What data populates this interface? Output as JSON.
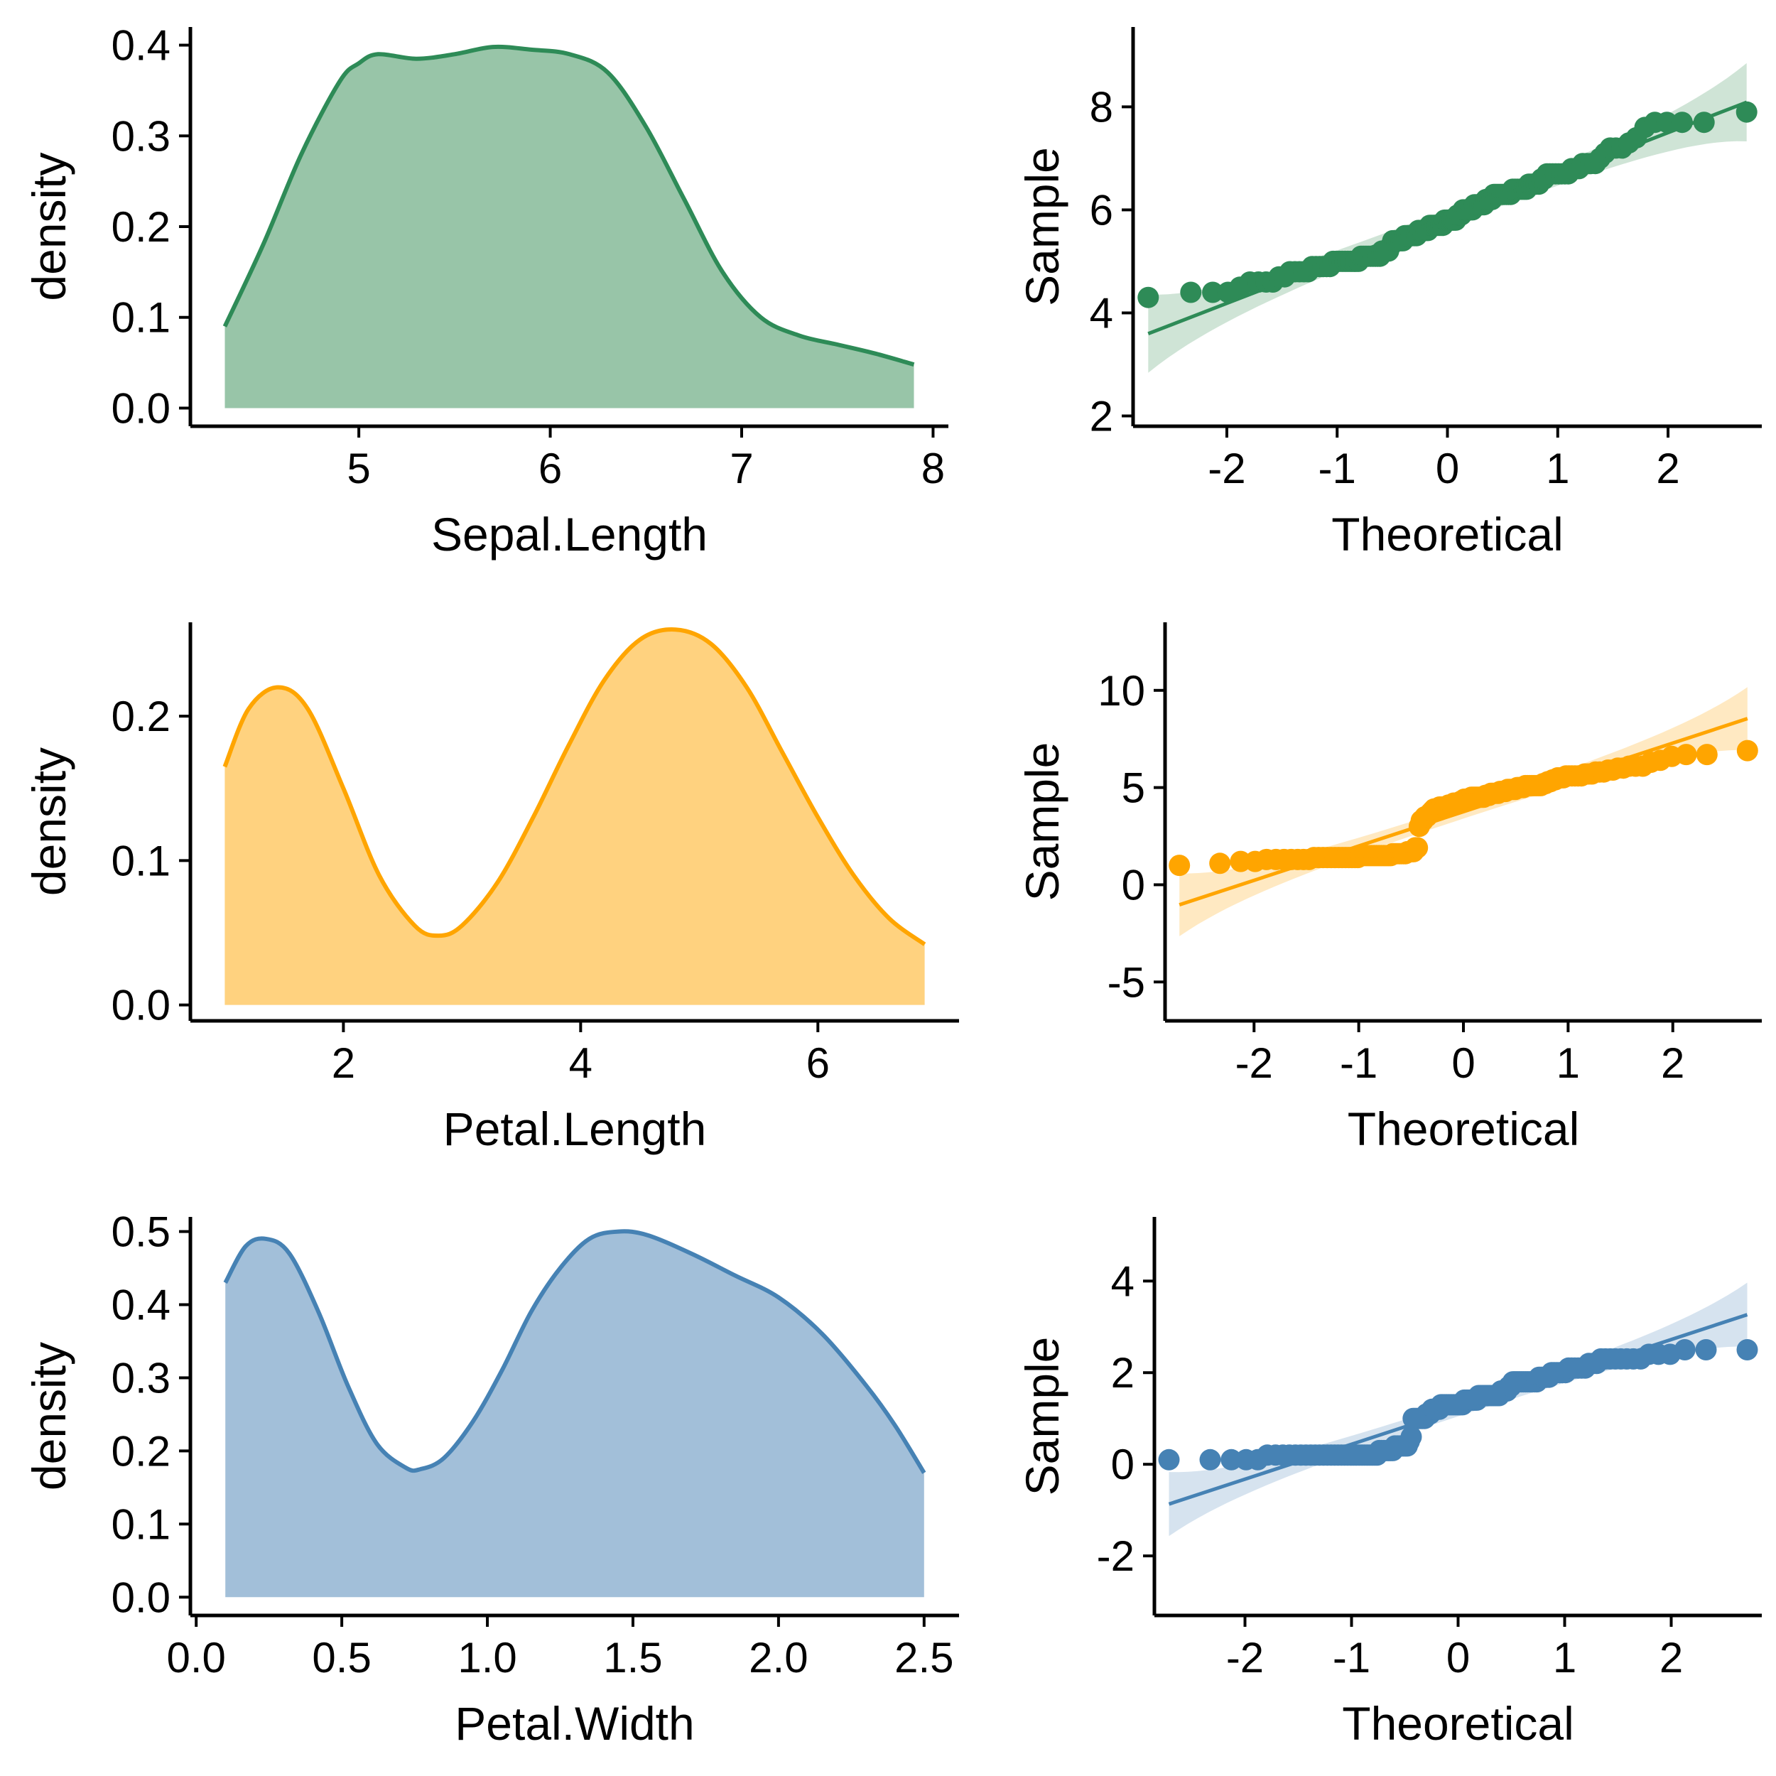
{
  "chart_data": [
    {
      "type": "area",
      "id": "density-sepal",
      "xlabel": "Sepal.Length",
      "ylabel": "density",
      "xlim": [
        4.12,
        8.08
      ],
      "ylim": [
        -0.02,
        0.42
      ],
      "xticks": [
        5,
        6,
        7,
        8
      ],
      "xtick_labels": [
        "5",
        "6",
        "7",
        "8"
      ],
      "yticks": [
        0.0,
        0.1,
        0.2,
        0.3,
        0.4
      ],
      "ytick_labels": [
        "0.0",
        "0.1",
        "0.2",
        "0.3",
        "0.4"
      ],
      "color": "#2E8B57",
      "fill": "#98C5A8",
      "grid": false,
      "x": [
        4.3,
        4.5,
        4.7,
        4.9,
        5.0,
        5.1,
        5.3,
        5.5,
        5.7,
        5.9,
        6.1,
        6.3,
        6.5,
        6.7,
        6.9,
        7.1,
        7.3,
        7.5,
        7.7,
        7.9
      ],
      "y": [
        0.09,
        0.18,
        0.28,
        0.36,
        0.38,
        0.39,
        0.385,
        0.39,
        0.398,
        0.395,
        0.39,
        0.37,
        0.31,
        0.23,
        0.15,
        0.1,
        0.08,
        0.07,
        0.06,
        0.048
      ]
    },
    {
      "type": "scatter",
      "id": "qq-sepal",
      "xlabel": "Theoretical",
      "ylabel": "Sample",
      "xlim": [
        -2.85,
        2.85
      ],
      "ylim": [
        1.8,
        9.55
      ],
      "xticks": [
        -2,
        -1,
        0,
        1,
        2
      ],
      "xtick_labels": [
        "-2",
        "-1",
        "0",
        "1",
        "2"
      ],
      "yticks": [
        2,
        4,
        6,
        8
      ],
      "ytick_labels": [
        "2",
        "4",
        "6",
        "8"
      ],
      "color": "#2E8B57",
      "band_fill": "#CFE4D6",
      "grid": false,
      "sample_mean": 5.843,
      "sample_sd": 0.828,
      "sample_sorted": [
        4.3,
        4.4,
        4.4,
        4.4,
        4.5,
        4.6,
        4.6,
        4.6,
        4.6,
        4.7,
        4.7,
        4.8,
        4.8,
        4.8,
        4.8,
        4.8,
        4.9,
        4.9,
        4.9,
        4.9,
        4.9,
        4.9,
        5.0,
        5.0,
        5.0,
        5.0,
        5.0,
        5.0,
        5.0,
        5.0,
        5.0,
        5.0,
        5.1,
        5.1,
        5.1,
        5.1,
        5.1,
        5.1,
        5.1,
        5.1,
        5.1,
        5.2,
        5.2,
        5.2,
        5.2,
        5.3,
        5.4,
        5.4,
        5.4,
        5.4,
        5.4,
        5.4,
        5.5,
        5.5,
        5.5,
        5.5,
        5.5,
        5.5,
        5.5,
        5.6,
        5.6,
        5.6,
        5.6,
        5.6,
        5.6,
        5.7,
        5.7,
        5.7,
        5.7,
        5.7,
        5.7,
        5.7,
        5.7,
        5.8,
        5.8,
        5.8,
        5.8,
        5.8,
        5.8,
        5.8,
        5.9,
        5.9,
        5.9,
        6.0,
        6.0,
        6.0,
        6.0,
        6.0,
        6.0,
        6.1,
        6.1,
        6.1,
        6.1,
        6.1,
        6.1,
        6.2,
        6.2,
        6.2,
        6.2,
        6.3,
        6.3,
        6.3,
        6.3,
        6.3,
        6.3,
        6.3,
        6.3,
        6.3,
        6.4,
        6.4,
        6.4,
        6.4,
        6.4,
        6.4,
        6.4,
        6.5,
        6.5,
        6.5,
        6.5,
        6.5,
        6.6,
        6.6,
        6.7,
        6.7,
        6.7,
        6.7,
        6.7,
        6.7,
        6.7,
        6.7,
        6.8,
        6.8,
        6.8,
        6.9,
        6.9,
        6.9,
        6.9,
        7.0,
        7.1,
        7.2,
        7.2,
        7.2,
        7.3,
        7.4,
        7.6,
        7.7,
        7.7,
        7.7,
        7.7,
        7.9
      ]
    },
    {
      "type": "area",
      "id": "density-petal-length",
      "xlabel": "Petal.Length",
      "ylabel": "density",
      "xlim": [
        0.71,
        7.19
      ],
      "ylim": [
        -0.011,
        0.265
      ],
      "xticks": [
        2,
        4,
        6
      ],
      "xtick_labels": [
        "2",
        "4",
        "6"
      ],
      "yticks": [
        0.0,
        0.1,
        0.2
      ],
      "ytick_labels": [
        "0.0",
        "0.1",
        "0.2"
      ],
      "color": "#FFA500",
      "fill": "#FFD27F",
      "grid": false,
      "x": [
        1.0,
        1.2,
        1.45,
        1.7,
        2.0,
        2.3,
        2.6,
        2.8,
        3.0,
        3.3,
        3.6,
        3.9,
        4.2,
        4.5,
        4.8,
        5.1,
        5.4,
        5.7,
        6.0,
        6.3,
        6.6,
        6.9
      ],
      "y": [
        0.165,
        0.205,
        0.22,
        0.205,
        0.15,
        0.09,
        0.055,
        0.048,
        0.055,
        0.085,
        0.13,
        0.18,
        0.225,
        0.253,
        0.26,
        0.25,
        0.22,
        0.175,
        0.13,
        0.09,
        0.06,
        0.042
      ]
    },
    {
      "type": "scatter",
      "id": "qq-petal-length",
      "xlabel": "Theoretical",
      "ylabel": "Sample",
      "xlim": [
        -2.85,
        2.85
      ],
      "ylim": [
        -7.0,
        13.5
      ],
      "xticks": [
        -2,
        -1,
        0,
        1,
        2
      ],
      "xtick_labels": [
        "-2",
        "-1",
        "0",
        "1",
        "2"
      ],
      "yticks": [
        -5,
        0,
        5,
        10
      ],
      "ytick_labels": [
        "-5",
        "0",
        "5",
        "10"
      ],
      "color": "#FFA500",
      "band_fill": "#FFE9C2",
      "grid": false,
      "sample_mean": 3.758,
      "sample_sd": 1.765,
      "sample_sorted": [
        1.0,
        1.1,
        1.2,
        1.2,
        1.3,
        1.3,
        1.3,
        1.3,
        1.3,
        1.3,
        1.3,
        1.4,
        1.4,
        1.4,
        1.4,
        1.4,
        1.4,
        1.4,
        1.4,
        1.4,
        1.4,
        1.4,
        1.4,
        1.4,
        1.5,
        1.5,
        1.5,
        1.5,
        1.5,
        1.5,
        1.5,
        1.5,
        1.5,
        1.5,
        1.5,
        1.5,
        1.5,
        1.6,
        1.6,
        1.6,
        1.6,
        1.6,
        1.6,
        1.6,
        1.7,
        1.7,
        1.7,
        1.7,
        1.9,
        1.9,
        3.0,
        3.3,
        3.3,
        3.5,
        3.5,
        3.6,
        3.7,
        3.8,
        3.9,
        3.9,
        3.9,
        4.0,
        4.0,
        4.0,
        4.0,
        4.0,
        4.1,
        4.1,
        4.1,
        4.2,
        4.2,
        4.2,
        4.2,
        4.3,
        4.3,
        4.4,
        4.4,
        4.4,
        4.4,
        4.5,
        4.5,
        4.5,
        4.5,
        4.5,
        4.5,
        4.5,
        4.5,
        4.6,
        4.6,
        4.6,
        4.7,
        4.7,
        4.7,
        4.7,
        4.7,
        4.8,
        4.8,
        4.8,
        4.8,
        4.9,
        4.9,
        4.9,
        4.9,
        4.9,
        5.0,
        5.0,
        5.0,
        5.0,
        5.1,
        5.1,
        5.1,
        5.1,
        5.1,
        5.1,
        5.1,
        5.1,
        5.2,
        5.2,
        5.3,
        5.3,
        5.4,
        5.4,
        5.5,
        5.5,
        5.5,
        5.6,
        5.6,
        5.6,
        5.6,
        5.6,
        5.6,
        5.7,
        5.7,
        5.7,
        5.8,
        5.8,
        5.8,
        5.9,
        5.9,
        6.0,
        6.0,
        6.1,
        6.1,
        6.1,
        6.3,
        6.4,
        6.6,
        6.7,
        6.7,
        6.9
      ]
    },
    {
      "type": "area",
      "id": "density-petal-width",
      "xlabel": "Petal.Width",
      "ylabel": "density",
      "xlim": [
        -0.02,
        2.62
      ],
      "ylim": [
        -0.025,
        0.52
      ],
      "xticks": [
        0.0,
        0.5,
        1.0,
        1.5,
        2.0,
        2.5
      ],
      "xtick_labels": [
        "0.0",
        "0.5",
        "1.0",
        "1.5",
        "2.0",
        "2.5"
      ],
      "yticks": [
        0.0,
        0.1,
        0.2,
        0.3,
        0.4,
        0.5
      ],
      "ytick_labels": [
        "0.0",
        "0.1",
        "0.2",
        "0.3",
        "0.4",
        "0.5"
      ],
      "color": "#4682B4",
      "fill": "#A2BFD9",
      "grid": false,
      "x": [
        0.1,
        0.17,
        0.24,
        0.32,
        0.42,
        0.52,
        0.62,
        0.72,
        0.77,
        0.85,
        0.95,
        1.05,
        1.15,
        1.25,
        1.35,
        1.45,
        1.55,
        1.7,
        1.85,
        2.0,
        2.15,
        2.3,
        2.4,
        2.5
      ],
      "y": [
        0.43,
        0.48,
        0.49,
        0.47,
        0.39,
        0.29,
        0.21,
        0.177,
        0.175,
        0.19,
        0.24,
        0.31,
        0.39,
        0.45,
        0.49,
        0.5,
        0.495,
        0.47,
        0.44,
        0.41,
        0.36,
        0.29,
        0.235,
        0.17
      ]
    },
    {
      "type": "scatter",
      "id": "qq-petal-width",
      "xlabel": "Theoretical",
      "ylabel": "Sample",
      "xlim": [
        -2.85,
        2.85
      ],
      "ylim": [
        -3.3,
        5.4
      ],
      "xticks": [
        -2,
        -1,
        0,
        1,
        2
      ],
      "xtick_labels": [
        "-2",
        "-1",
        "0",
        "1",
        "2"
      ],
      "yticks": [
        -2,
        0,
        2,
        4
      ],
      "ytick_labels": [
        "-2",
        "0",
        "2",
        "4"
      ],
      "color": "#4682B4",
      "band_fill": "#D6E3EF",
      "grid": false,
      "sample_mean": 1.199,
      "sample_sd": 0.762,
      "sample_sorted": [
        0.1,
        0.1,
        0.1,
        0.1,
        0.1,
        0.2,
        0.2,
        0.2,
        0.2,
        0.2,
        0.2,
        0.2,
        0.2,
        0.2,
        0.2,
        0.2,
        0.2,
        0.2,
        0.2,
        0.2,
        0.2,
        0.2,
        0.2,
        0.2,
        0.2,
        0.2,
        0.2,
        0.2,
        0.2,
        0.2,
        0.2,
        0.2,
        0.2,
        0.2,
        0.3,
        0.3,
        0.3,
        0.3,
        0.3,
        0.3,
        0.3,
        0.4,
        0.4,
        0.4,
        0.4,
        0.4,
        0.4,
        0.4,
        0.5,
        0.6,
        1.0,
        1.0,
        1.0,
        1.0,
        1.0,
        1.0,
        1.0,
        1.1,
        1.1,
        1.1,
        1.2,
        1.2,
        1.2,
        1.2,
        1.2,
        1.3,
        1.3,
        1.3,
        1.3,
        1.3,
        1.3,
        1.3,
        1.3,
        1.3,
        1.3,
        1.3,
        1.3,
        1.3,
        1.4,
        1.4,
        1.4,
        1.4,
        1.4,
        1.4,
        1.4,
        1.4,
        1.5,
        1.5,
        1.5,
        1.5,
        1.5,
        1.5,
        1.5,
        1.5,
        1.5,
        1.5,
        1.5,
        1.5,
        1.6,
        1.6,
        1.6,
        1.6,
        1.7,
        1.7,
        1.8,
        1.8,
        1.8,
        1.8,
        1.8,
        1.8,
        1.8,
        1.8,
        1.8,
        1.8,
        1.8,
        1.8,
        1.9,
        1.9,
        1.9,
        1.9,
        1.9,
        2.0,
        2.0,
        2.0,
        2.0,
        2.0,
        2.0,
        2.1,
        2.1,
        2.1,
        2.1,
        2.1,
        2.1,
        2.2,
        2.2,
        2.2,
        2.3,
        2.3,
        2.3,
        2.3,
        2.3,
        2.3,
        2.3,
        2.3,
        2.4,
        2.4,
        2.4,
        2.5,
        2.5,
        2.5
      ]
    }
  ]
}
